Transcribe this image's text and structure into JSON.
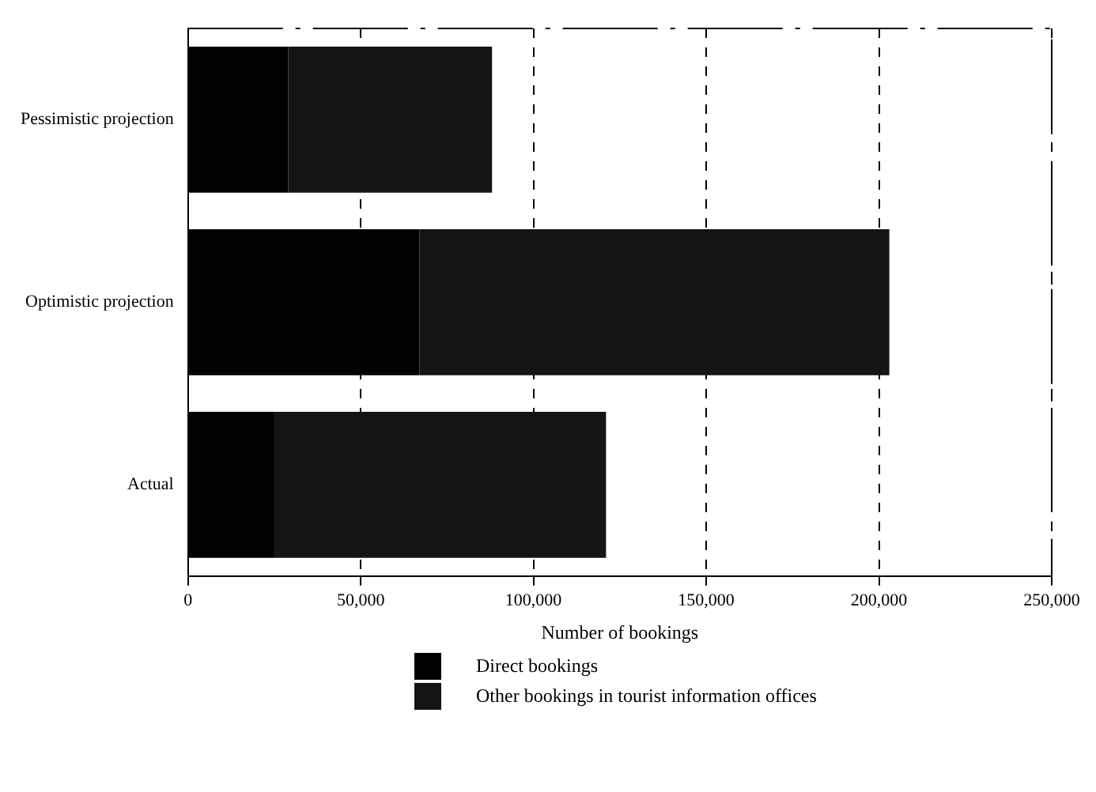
{
  "chart_data": {
    "type": "bar",
    "orientation": "horizontal",
    "stacked": true,
    "xlabel": "Number of bookings",
    "categories": [
      "Pessimistic projection",
      "Optimistic projection",
      "Actual"
    ],
    "series": [
      {
        "name": "Direct bookings",
        "color": "#000000",
        "values": [
          29000,
          67000,
          25000
        ]
      },
      {
        "name": "Other bookings in tourist information offices",
        "color": "#141414",
        "values": [
          59000,
          136000,
          96000
        ]
      }
    ],
    "xlim": [
      0,
      250000
    ],
    "xticks": [
      0,
      {
        "value": 50000,
        "label": "50,000"
      },
      {
        "value": 100000,
        "label": "100,000"
      },
      {
        "value": 150000,
        "label": "150,000"
      },
      {
        "value": 200000,
        "label": "200,000"
      },
      {
        "value": 250000,
        "label": "250,000"
      }
    ],
    "grid": "x",
    "legend": "bottom"
  }
}
